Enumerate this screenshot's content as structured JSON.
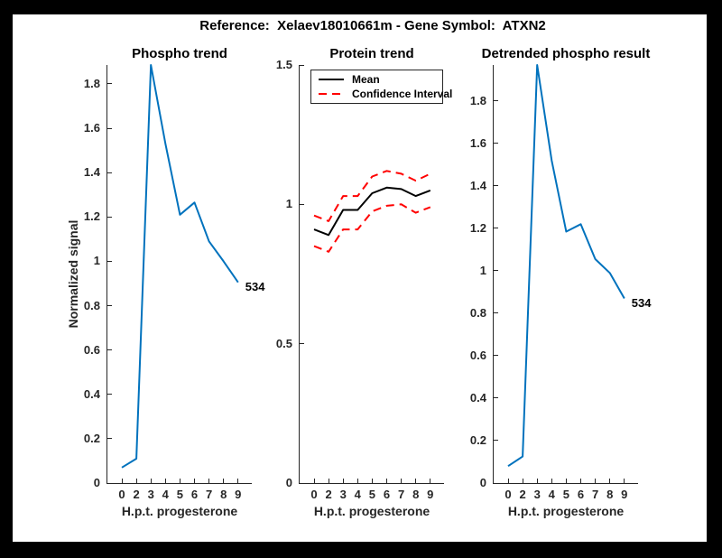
{
  "window": {
    "frame_color": "#000000",
    "canvas_color": "#ffffff"
  },
  "figure_title": "Reference:  Xelaev18010661m - Gene Symbol:  ATXN2",
  "colors": {
    "line_blue": "#0072BD",
    "ci_red": "#FF0000",
    "mean_black": "#000000",
    "axis_gray": "#262626"
  },
  "chart_data": [
    {
      "type": "line",
      "title": "Phospho trend",
      "xlabel": "H.p.t. progesterone",
      "ylabel": "Normalized signal",
      "categories": [
        "0",
        "2",
        "3",
        "4",
        "5",
        "6",
        "7",
        "8",
        "9"
      ],
      "ylim": [
        0,
        1.885
      ],
      "yticks": [
        0,
        0.2,
        0.4,
        0.6,
        0.8,
        1,
        1.2,
        1.4,
        1.6,
        1.8
      ],
      "grid": false,
      "series": [
        {
          "name": "phospho signal",
          "color": "#0072BD",
          "style": "solid",
          "width": 2,
          "values": [
            0.07,
            0.11,
            1.885,
            1.53,
            1.21,
            1.265,
            1.09,
            1.0,
            0.905
          ]
        }
      ],
      "end_label": "534"
    },
    {
      "type": "line",
      "title": "Protein trend",
      "xlabel": "H.p.t. progesterone",
      "ylabel": "",
      "categories": [
        "0",
        "2",
        "3",
        "4",
        "5",
        "6",
        "7",
        "8",
        "9"
      ],
      "ylim": [
        0,
        1.5
      ],
      "yticks": [
        0,
        0.5,
        1,
        1.5
      ],
      "grid": false,
      "legend_position": "top-inside",
      "legend": [
        {
          "label": "Mean",
          "color": "#000000",
          "style": "solid"
        },
        {
          "label": "Confidence Interval",
          "color": "#FF0000",
          "style": "dashed"
        }
      ],
      "series": [
        {
          "name": "confidence upper",
          "color": "#FF0000",
          "style": "dashed",
          "width": 2,
          "values": [
            0.96,
            0.94,
            1.03,
            1.03,
            1.1,
            1.12,
            1.11,
            1.085,
            1.11
          ]
        },
        {
          "name": "confidence lower",
          "color": "#FF0000",
          "style": "dashed",
          "width": 2,
          "values": [
            0.85,
            0.83,
            0.91,
            0.91,
            0.975,
            0.995,
            1.0,
            0.97,
            0.99
          ]
        },
        {
          "name": "mean",
          "color": "#000000",
          "style": "solid",
          "width": 2,
          "values": [
            0.91,
            0.89,
            0.98,
            0.98,
            1.04,
            1.06,
            1.055,
            1.03,
            1.05
          ]
        }
      ]
    },
    {
      "type": "line",
      "title": "Detrended phospho result",
      "xlabel": "H.p.t. progesterone",
      "ylabel": "",
      "categories": [
        "0",
        "2",
        "3",
        "4",
        "5",
        "6",
        "7",
        "8",
        "9"
      ],
      "ylim": [
        0,
        1.97
      ],
      "yticks": [
        0,
        0.2,
        0.4,
        0.6,
        0.8,
        1,
        1.2,
        1.4,
        1.6,
        1.8
      ],
      "grid": false,
      "series": [
        {
          "name": "detrended phospho signal",
          "color": "#0072BD",
          "style": "solid",
          "width": 2,
          "values": [
            0.08,
            0.125,
            1.97,
            1.52,
            1.185,
            1.22,
            1.055,
            0.99,
            0.87
          ]
        }
      ],
      "end_label": "534"
    }
  ]
}
